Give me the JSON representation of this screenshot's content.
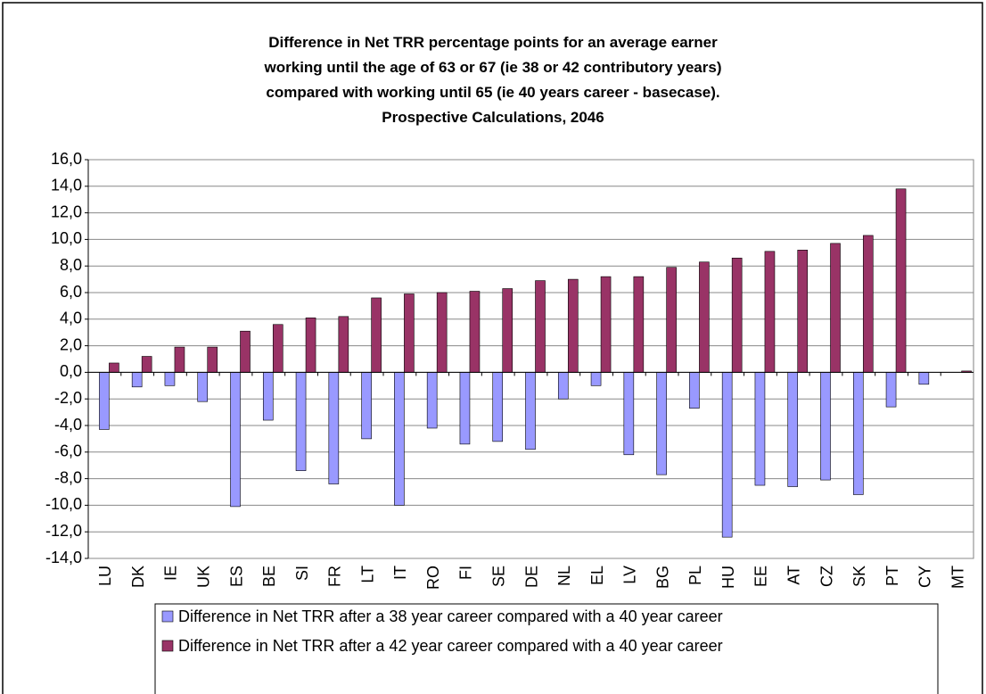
{
  "chart_data": {
    "type": "bar",
    "title": "Difference in Net TRR percentage points for an average earner working until the age of 63 or 67 (ie 38 or 42 contributory years) compared with working until 65 (ie 40 years career - basecase). Prospective Calculations, 2046",
    "categories": [
      "LU",
      "DK",
      "IE",
      "UK",
      "ES",
      "BE",
      "SI",
      "FR",
      "LT",
      "IT",
      "RO",
      "FI",
      "SE",
      "DE",
      "NL",
      "EL",
      "LV",
      "BG",
      "PL",
      "HU",
      "EE",
      "AT",
      "CZ",
      "SK",
      "PT",
      "CY",
      "MT"
    ],
    "series": [
      {
        "name": "Difference in Net TRR after a 38 year career compared with a 40 year career",
        "color": "#9999ff",
        "values": [
          -4.3,
          -1.1,
          -1.0,
          -2.2,
          -10.1,
          -3.6,
          -7.4,
          -8.4,
          -5.0,
          -10.0,
          -4.2,
          -5.4,
          -5.2,
          -5.8,
          -2.0,
          -1.0,
          -6.2,
          -7.7,
          -2.7,
          -12.4,
          -8.5,
          -8.6,
          -8.1,
          -9.2,
          -2.6,
          -0.9,
          0
        ]
      },
      {
        "name": "Difference in Net TRR after a 42 year career compared with a 40 year career",
        "color": "#993366",
        "values": [
          0.7,
          1.2,
          1.9,
          1.9,
          3.1,
          3.6,
          4.1,
          4.2,
          5.6,
          5.9,
          6.0,
          6.1,
          6.3,
          6.9,
          7.0,
          7.2,
          7.2,
          7.9,
          8.3,
          8.6,
          9.1,
          9.2,
          9.7,
          10.3,
          13.8,
          0,
          0.1
        ]
      }
    ],
    "ylim": [
      -14,
      16
    ],
    "yticks": [
      {
        "value": -14,
        "label": "-14,0"
      },
      {
        "value": -12,
        "label": "-12,0"
      },
      {
        "value": -10,
        "label": "-10,0"
      },
      {
        "value": -8,
        "label": "-8,0"
      },
      {
        "value": -6,
        "label": "-6,0"
      },
      {
        "value": -4,
        "label": "-4,0"
      },
      {
        "value": -2,
        "label": "-2,0"
      },
      {
        "value": 0,
        "label": "0,0"
      },
      {
        "value": 2,
        "label": "2,0"
      },
      {
        "value": 4,
        "label": "4,0"
      },
      {
        "value": 6,
        "label": "6,0"
      },
      {
        "value": 8,
        "label": "8,0"
      },
      {
        "value": 10,
        "label": "10,0"
      },
      {
        "value": 12,
        "label": "12,0"
      },
      {
        "value": 14,
        "label": "14,0"
      },
      {
        "value": 16,
        "label": "16,0"
      }
    ],
    "grid": true
  }
}
